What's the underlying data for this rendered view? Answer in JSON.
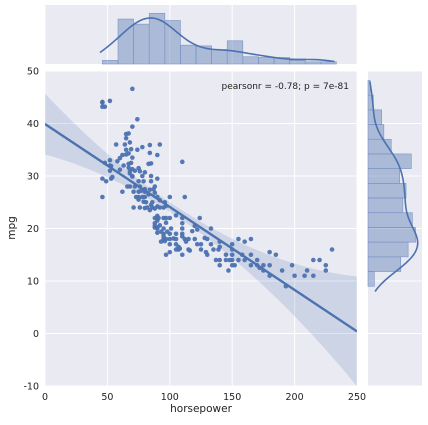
{
  "chart_data": {
    "type": "scatter",
    "title": "",
    "xlabel": "horsepower",
    "ylabel": "mpg",
    "xlim": [
      0,
      250
    ],
    "ylim": [
      -10,
      50
    ],
    "xticks": [
      "0",
      "50",
      "100",
      "150",
      "200",
      "250"
    ],
    "yticks": [
      "-10",
      "0",
      "10",
      "20",
      "30",
      "40",
      "50"
    ],
    "annotation": "pearsonr = -0.78; p = 7e-81",
    "regression": {
      "intercept": 39.9,
      "slope": -0.158
    },
    "marginal_x": {
      "type": "histogram+kde",
      "bin_edges": [
        46,
        58.5,
        71,
        83.5,
        96,
        108.5,
        121,
        133.5,
        146,
        158.5,
        171,
        183.5,
        196,
        208.5,
        221,
        233.5
      ],
      "counts": [
        5,
        62,
        55,
        70,
        60,
        26,
        25,
        20,
        32,
        10,
        9,
        9,
        5,
        3,
        3
      ]
    },
    "marginal_y": {
      "type": "histogram+kde",
      "bin_edges": [
        9,
        11.8,
        14.6,
        17.4,
        20.2,
        23,
        25.8,
        28.6,
        31.4,
        34.2,
        37,
        39.8,
        42.6,
        45.4,
        48.2
      ],
      "counts": [
        6,
        31,
        38,
        45,
        42,
        33,
        36,
        30,
        41,
        22,
        15,
        13,
        5,
        2
      ]
    },
    "points": [
      [
        46,
        43.2
      ],
      [
        46,
        44.0
      ],
      [
        46,
        44.1
      ],
      [
        48,
        43.2
      ],
      [
        52,
        44.3
      ],
      [
        53,
        29.5
      ],
      [
        46,
        29.5
      ],
      [
        46,
        26.0
      ],
      [
        48,
        32.5
      ],
      [
        49,
        29.0
      ],
      [
        52,
        31.0
      ],
      [
        52,
        32.0
      ],
      [
        52,
        33.0
      ],
      [
        53,
        31.9
      ],
      [
        54,
        29.8
      ],
      [
        58,
        32.8
      ],
      [
        60,
        31.2
      ],
      [
        60,
        33.4
      ],
      [
        62,
        34.0
      ],
      [
        63,
        32.0
      ],
      [
        64,
        36.0
      ],
      [
        65,
        35.0
      ],
      [
        65,
        38.0
      ],
      [
        65,
        34.1
      ],
      [
        65,
        37.2
      ],
      [
        67,
        32.3
      ],
      [
        67,
        31.6
      ],
      [
        67,
        38.1
      ],
      [
        67,
        34.3
      ],
      [
        68,
        31.0
      ],
      [
        68,
        30.5
      ],
      [
        68,
        28.0
      ],
      [
        68,
        36.4
      ],
      [
        69,
        32.5
      ],
      [
        69,
        35.1
      ],
      [
        70,
        31.3
      ],
      [
        70,
        29.9
      ],
      [
        70,
        30.0
      ],
      [
        70,
        33.5
      ],
      [
        70,
        39.4
      ],
      [
        70,
        46.6
      ],
      [
        71,
        27.0
      ],
      [
        71,
        24.0
      ],
      [
        72,
        28.0
      ],
      [
        74,
        35.0
      ],
      [
        74,
        40.8
      ],
      [
        75,
        25.5
      ],
      [
        75,
        26.0
      ],
      [
        75,
        31.5
      ],
      [
        75,
        29.0
      ],
      [
        75,
        27.0
      ],
      [
        76,
        24.0
      ],
      [
        76,
        30.9
      ],
      [
        76,
        28.0
      ],
      [
        77,
        27.2
      ],
      [
        78,
        26.0
      ],
      [
        78,
        30.0
      ],
      [
        78,
        35.5
      ],
      [
        79,
        25.1
      ],
      [
        80,
        23.9
      ],
      [
        80,
        26.0
      ],
      [
        80,
        27.5
      ],
      [
        80,
        30.7
      ],
      [
        80,
        27.0
      ],
      [
        81,
        25.0
      ],
      [
        82,
        24.0
      ],
      [
        83,
        26.5
      ],
      [
        83,
        32.3
      ],
      [
        84,
        27.4
      ],
      [
        84,
        23.5
      ],
      [
        84,
        35.9
      ],
      [
        84,
        34.4
      ],
      [
        85,
        32.4
      ],
      [
        85,
        30.0
      ],
      [
        85,
        24.5
      ],
      [
        85,
        29.0
      ],
      [
        86,
        25.0
      ],
      [
        86,
        24.0
      ],
      [
        88,
        20.2
      ],
      [
        88,
        21.0
      ],
      [
        88,
        26.8
      ],
      [
        88,
        28.0
      ],
      [
        88,
        22.0
      ],
      [
        88,
        23.8
      ],
      [
        88,
        20.5
      ],
      [
        90,
        19.2
      ],
      [
        90,
        22.4
      ],
      [
        90,
        24.2
      ],
      [
        90,
        26.0
      ],
      [
        90,
        20.2
      ],
      [
        90,
        20.0
      ],
      [
        90,
        29.5
      ],
      [
        90,
        34.0
      ],
      [
        90,
        21.5
      ],
      [
        90,
        22.0
      ],
      [
        92,
        20.6
      ],
      [
        92,
        25.4
      ],
      [
        92,
        24.0
      ],
      [
        92,
        36.0
      ],
      [
        93,
        17.5
      ],
      [
        93,
        19.4
      ],
      [
        95,
        18.0
      ],
      [
        95,
        20.0
      ],
      [
        95,
        24.0
      ],
      [
        95,
        19.0
      ],
      [
        95,
        22.0
      ],
      [
        95,
        18.5
      ],
      [
        96,
        17.6
      ],
      [
        96,
        25.0
      ],
      [
        97,
        18.0
      ],
      [
        97,
        21.1
      ],
      [
        97,
        15.0
      ],
      [
        97,
        22.0
      ],
      [
        97,
        24.3
      ],
      [
        98,
        19.4
      ],
      [
        100,
        15.5
      ],
      [
        100,
        18.0
      ],
      [
        100,
        17.0
      ],
      [
        100,
        22.0
      ],
      [
        100,
        19.0
      ],
      [
        100,
        26.0
      ],
      [
        103,
        18.1
      ],
      [
        105,
        18.0
      ],
      [
        105,
        17.0
      ],
      [
        105,
        19.0
      ],
      [
        105,
        16.0
      ],
      [
        105,
        22.5
      ],
      [
        107,
        16.5
      ],
      [
        108,
        16.2
      ],
      [
        110,
        15.0
      ],
      [
        110,
        18.5
      ],
      [
        110,
        19.0
      ],
      [
        110,
        20.0
      ],
      [
        110,
        21.0
      ],
      [
        110,
        22.0
      ],
      [
        110,
        32.7
      ],
      [
        112,
        18.0
      ],
      [
        113,
        17.5
      ],
      [
        115,
        18.0
      ],
      [
        115,
        16.0
      ],
      [
        116,
        15.8
      ],
      [
        120,
        20.5
      ],
      [
        120,
        18.0
      ],
      [
        122,
        19.8
      ],
      [
        125,
        16.0
      ],
      [
        125,
        17.0
      ],
      [
        129,
        15.5
      ],
      [
        130,
        18.0
      ],
      [
        130,
        15.0
      ],
      [
        133,
        17.0
      ],
      [
        135,
        16.0
      ],
      [
        139,
        16.0
      ],
      [
        140,
        14.0
      ],
      [
        140,
        16.5
      ],
      [
        140,
        13.0
      ],
      [
        140,
        17.5
      ],
      [
        145,
        14.0
      ],
      [
        145,
        15.0
      ],
      [
        148,
        14.0
      ],
      [
        150,
        14.0
      ],
      [
        150,
        15.0
      ],
      [
        150,
        13.0
      ],
      [
        150,
        16.0
      ],
      [
        152,
        13.0
      ],
      [
        155,
        14.0
      ],
      [
        158,
        15.0
      ],
      [
        160,
        14.0
      ],
      [
        165,
        13.0
      ],
      [
        165,
        15.0
      ],
      [
        170,
        13.0
      ],
      [
        170,
        14.0
      ],
      [
        175,
        13.0
      ],
      [
        175,
        12.0
      ],
      [
        180,
        13.0
      ],
      [
        180,
        15.5
      ],
      [
        180,
        11.0
      ],
      [
        190,
        12.0
      ],
      [
        193,
        9.0
      ],
      [
        198,
        13.0
      ],
      [
        200,
        11.0
      ],
      [
        208,
        11.0
      ],
      [
        210,
        12.0
      ],
      [
        215,
        14.0
      ],
      [
        215,
        11.0
      ],
      [
        220,
        14.0
      ],
      [
        225,
        13.0
      ],
      [
        225,
        12.0
      ],
      [
        230,
        16.0
      ],
      [
        165,
        18.0
      ],
      [
        137,
        14.0
      ],
      [
        147,
        12.0
      ],
      [
        128,
        18.2
      ],
      [
        118,
        19.5
      ],
      [
        172,
        12.5
      ],
      [
        185,
        15.0
      ],
      [
        122,
        17.0
      ],
      [
        107,
        16.0
      ],
      [
        91,
        22.0
      ],
      [
        79,
        29.0
      ],
      [
        73,
        26.0
      ],
      [
        57,
        36.0
      ],
      [
        62,
        27.0
      ],
      [
        72,
        31.0
      ],
      [
        66,
        28.0
      ],
      [
        87,
        27.5
      ],
      [
        101,
        20.0
      ],
      [
        112,
        26.0
      ],
      [
        124,
        22.0
      ],
      [
        133,
        20.0
      ],
      [
        150,
        17.0
      ],
      [
        160,
        17.5
      ],
      [
        155,
        18.0
      ]
    ]
  }
}
